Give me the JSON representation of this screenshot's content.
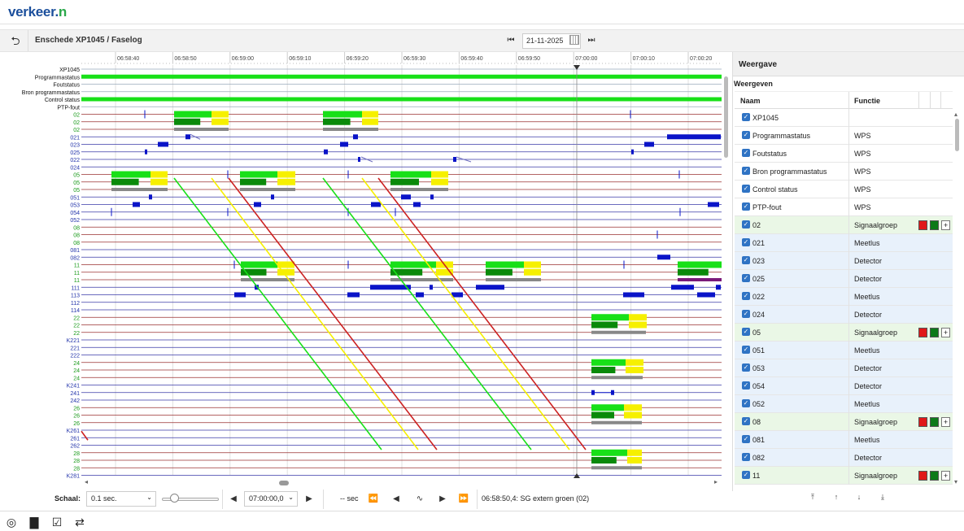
{
  "app": {
    "logo_text": "verkeer.",
    "logo_n": "n"
  },
  "titlebar": {
    "back_icon": "back-arrow-icon",
    "title": "Enschede XP1045 / Faselog",
    "date": "21-11-2025"
  },
  "timeline": {
    "ticks": [
      "06:58:40",
      "06:58:50",
      "06:59:00",
      "06:59:10",
      "06:59:20",
      "06:59:30",
      "06:59:40",
      "06:59:50",
      "07:00:00",
      "07:00:10",
      "07:00:20"
    ]
  },
  "rows": [
    {
      "label": "XP1045",
      "kind": "black"
    },
    {
      "label": "Programmastatus",
      "kind": "black"
    },
    {
      "label": "Foutstatus",
      "kind": "black"
    },
    {
      "label": "Bron programmastatus",
      "kind": "black"
    },
    {
      "label": "Control status",
      "kind": "black"
    },
    {
      "label": "PTP-fout",
      "kind": "black"
    },
    {
      "label": "02",
      "kind": "sg"
    },
    {
      "label": "02",
      "kind": "sg"
    },
    {
      "label": "02",
      "kind": "sg"
    },
    {
      "label": "021",
      "kind": "det"
    },
    {
      "label": "023",
      "kind": "det"
    },
    {
      "label": "025",
      "kind": "det"
    },
    {
      "label": "022",
      "kind": "det"
    },
    {
      "label": "024",
      "kind": "det"
    },
    {
      "label": "05",
      "kind": "sg"
    },
    {
      "label": "05",
      "kind": "sg"
    },
    {
      "label": "05",
      "kind": "sg"
    },
    {
      "label": "051",
      "kind": "det"
    },
    {
      "label": "053",
      "kind": "det"
    },
    {
      "label": "054",
      "kind": "det"
    },
    {
      "label": "052",
      "kind": "det"
    },
    {
      "label": "08",
      "kind": "sg"
    },
    {
      "label": "08",
      "kind": "sg"
    },
    {
      "label": "08",
      "kind": "sg"
    },
    {
      "label": "081",
      "kind": "det"
    },
    {
      "label": "082",
      "kind": "det"
    },
    {
      "label": "11",
      "kind": "sg"
    },
    {
      "label": "11",
      "kind": "sg"
    },
    {
      "label": "11",
      "kind": "sg"
    },
    {
      "label": "111",
      "kind": "det"
    },
    {
      "label": "113",
      "kind": "det"
    },
    {
      "label": "112",
      "kind": "det"
    },
    {
      "label": "114",
      "kind": "det"
    },
    {
      "label": "22",
      "kind": "sg"
    },
    {
      "label": "22",
      "kind": "sg"
    },
    {
      "label": "22",
      "kind": "sg"
    },
    {
      "label": "K221",
      "kind": "det"
    },
    {
      "label": "221",
      "kind": "det"
    },
    {
      "label": "222",
      "kind": "det"
    },
    {
      "label": "24",
      "kind": "sg"
    },
    {
      "label": "24",
      "kind": "sg"
    },
    {
      "label": "24",
      "kind": "sg"
    },
    {
      "label": "K241",
      "kind": "det"
    },
    {
      "label": "241",
      "kind": "det"
    },
    {
      "label": "242",
      "kind": "det"
    },
    {
      "label": "26",
      "kind": "sg"
    },
    {
      "label": "26",
      "kind": "sg"
    },
    {
      "label": "26",
      "kind": "sg"
    },
    {
      "label": "K261",
      "kind": "det"
    },
    {
      "label": "261",
      "kind": "det"
    },
    {
      "label": "262",
      "kind": "det"
    },
    {
      "label": "28",
      "kind": "sg"
    },
    {
      "label": "28",
      "kind": "sg"
    },
    {
      "label": "28",
      "kind": "sg"
    },
    {
      "label": "K281",
      "kind": "det"
    }
  ],
  "panel": {
    "title": "Weergave",
    "subtitle": "Weergeven",
    "col_name": "Naam",
    "col_function": "Functie",
    "rows": [
      {
        "name": "XP1045",
        "func": "",
        "type": "plain"
      },
      {
        "name": "Programmastatus",
        "func": "WPS",
        "type": "plain"
      },
      {
        "name": "Foutstatus",
        "func": "WPS",
        "type": "plain"
      },
      {
        "name": "Bron programmastatus",
        "func": "WPS",
        "type": "plain"
      },
      {
        "name": "Control status",
        "func": "WPS",
        "type": "plain"
      },
      {
        "name": "PTP-fout",
        "func": "WPS",
        "type": "plain"
      },
      {
        "name": "02",
        "func": "Signaalgroep",
        "type": "sg"
      },
      {
        "name": "021",
        "func": "Meetlus",
        "type": "det"
      },
      {
        "name": "023",
        "func": "Detector",
        "type": "det"
      },
      {
        "name": "025",
        "func": "Detector",
        "type": "det"
      },
      {
        "name": "022",
        "func": "Meetlus",
        "type": "det"
      },
      {
        "name": "024",
        "func": "Detector",
        "type": "det"
      },
      {
        "name": "05",
        "func": "Signaalgroep",
        "type": "sg"
      },
      {
        "name": "051",
        "func": "Meetlus",
        "type": "det"
      },
      {
        "name": "053",
        "func": "Detector",
        "type": "det"
      },
      {
        "name": "054",
        "func": "Detector",
        "type": "det"
      },
      {
        "name": "052",
        "func": "Meetlus",
        "type": "det"
      },
      {
        "name": "08",
        "func": "Signaalgroep",
        "type": "sg"
      },
      {
        "name": "081",
        "func": "Meetlus",
        "type": "det"
      },
      {
        "name": "082",
        "func": "Detector",
        "type": "det"
      },
      {
        "name": "11",
        "func": "Signaalgroep",
        "type": "sg"
      }
    ]
  },
  "bottombar": {
    "scale_label": "Schaal:",
    "scale_value": "0.1 sec.",
    "time_value": "07:00:00,0",
    "sec_label": "-- sec",
    "status": "06:58:50,4: SG extern groen (02)"
  },
  "colors": {
    "green": "#18e018",
    "darkgreen": "#0a8a0a",
    "yellow": "#f6f000",
    "red": "#cc2222",
    "detector": "#0a14c8",
    "sgline": "#9a3030",
    "detline": "#3a3aa8"
  }
}
